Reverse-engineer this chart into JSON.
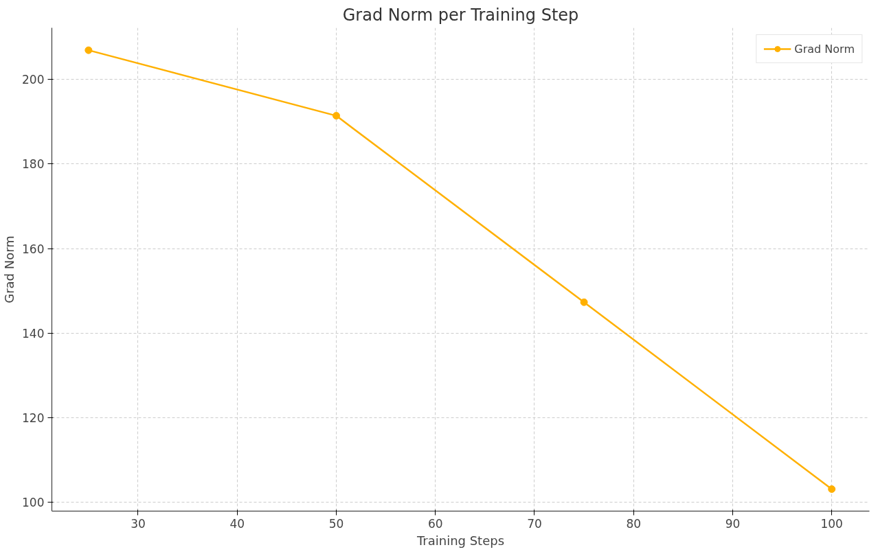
{
  "chart_data": {
    "type": "line",
    "title": "Grad Norm per Training Step",
    "xlabel": "Training Steps",
    "ylabel": "Grad Norm",
    "x": [
      25,
      50,
      75,
      100
    ],
    "series": [
      {
        "name": "Grad Norm",
        "color": "#ffb000",
        "values": [
          206.9,
          191.4,
          147.3,
          103.1
        ]
      }
    ],
    "xlim": [
      21.3,
      103.8
    ],
    "ylim": [
      97.9,
      212.2
    ],
    "xticks": [
      30,
      40,
      50,
      60,
      70,
      80,
      90,
      100
    ],
    "yticks": [
      100,
      120,
      140,
      160,
      180,
      200
    ],
    "grid": true,
    "legend": "top right",
    "marker": "circle",
    "line_style": "solid"
  }
}
